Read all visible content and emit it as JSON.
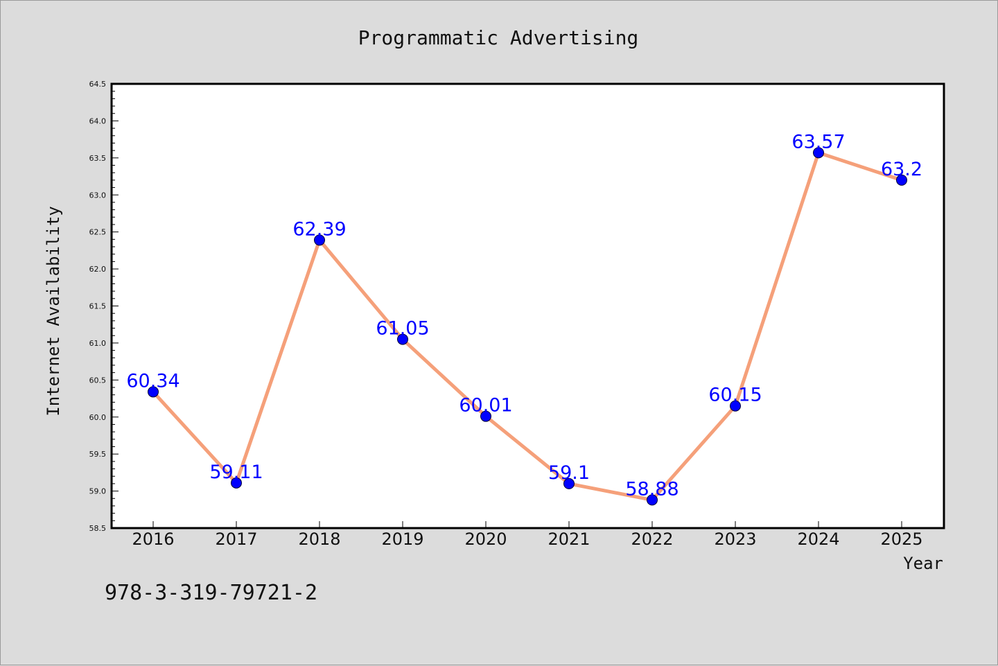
{
  "chart_data": {
    "type": "line",
    "title": "Programmatic Advertising",
    "xlabel": "Year",
    "ylabel": "Internet Availability",
    "categories": [
      "2016",
      "2017",
      "2018",
      "2019",
      "2020",
      "2021",
      "2022",
      "2023",
      "2024",
      "2025"
    ],
    "values": [
      60.34,
      59.11,
      62.39,
      61.05,
      60.01,
      59.1,
      58.88,
      60.15,
      63.57,
      63.2
    ],
    "data_labels": [
      "60.34",
      "59.11",
      "62.39",
      "61.05",
      "60.01",
      "59.1",
      "58.88",
      "60.15",
      "63.57",
      "63.2"
    ],
    "ylim": [
      58.5,
      64.5
    ],
    "yticks": [
      "58.5",
      "59.0",
      "59.5",
      "60.0",
      "60.5",
      "61.0",
      "61.5",
      "62.0",
      "62.5",
      "63.0",
      "63.5",
      "64.0",
      "64.5"
    ],
    "grid": false,
    "legend": "none",
    "colors": {
      "line": "#f5a07a",
      "marker": "#0000ff",
      "data_label": "#0000ff",
      "plot_bg": "#ffffff",
      "figure_bg": "#dcdcdc"
    }
  },
  "footer": {
    "text": "978-3-319-79721-2"
  }
}
